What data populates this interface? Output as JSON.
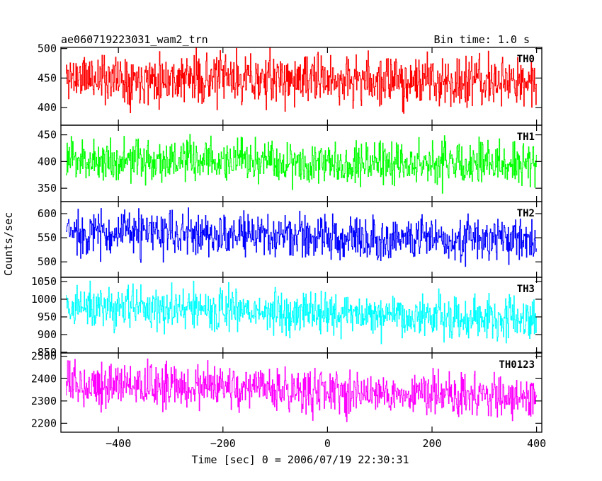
{
  "chart_data": {
    "type": "line",
    "title": "ae060719223031_wam2_trn",
    "bin_time": "Bin time: 1.0 s",
    "xlabel": "Time [sec] 0 = 2006/07/19 22:30:31",
    "ylabel": "Counts/sec",
    "xlim": [
      -510,
      410
    ],
    "x_ticks": [
      -400,
      -200,
      0,
      200,
      400
    ],
    "x_tick_labels": [
      "−400",
      "−200",
      "0",
      "200",
      "400"
    ],
    "x_range": [
      -500,
      400
    ],
    "panels": [
      {
        "label": "TH0",
        "color": "#ff0000",
        "ylim": [
          370,
          502
        ],
        "y_ticks": [
          400,
          450,
          500
        ],
        "y_tick_labels": [
          "400",
          "450",
          "500"
        ],
        "level_start": 452,
        "level_end": 442,
        "noise": 21,
        "seed": 11
      },
      {
        "label": "TH1",
        "color": "#00ff00",
        "ylim": [
          325,
          468
        ],
        "y_ticks": [
          350,
          400,
          450
        ],
        "y_tick_labels": [
          "350",
          "400",
          "450"
        ],
        "level_start": 403,
        "level_end": 396,
        "noise": 20,
        "seed": 23
      },
      {
        "label": "TH2",
        "color": "#0000ff",
        "ylim": [
          468,
          625
        ],
        "y_ticks": [
          500,
          550,
          600
        ],
        "y_tick_labels": [
          "500",
          "550",
          "600"
        ],
        "level_start": 562,
        "level_end": 545,
        "noise": 23,
        "seed": 37
      },
      {
        "label": "TH3",
        "color": "#00ffff",
        "ylim": [
          848,
          1062
        ],
        "y_ticks": [
          850,
          900,
          950,
          1000,
          1050
        ],
        "y_tick_labels": [
          "850",
          "900",
          "950",
          "1000",
          "1050"
        ],
        "level_start": 980,
        "level_end": 945,
        "noise": 31,
        "seed": 41
      },
      {
        "label": "TH0123",
        "color": "#ff00ff",
        "ylim": [
          2160,
          2515
        ],
        "y_ticks": [
          2200,
          2300,
          2400,
          2500
        ],
        "y_tick_labels": [
          "2200",
          "2300",
          "2400",
          "2500"
        ],
        "level_start": 2380,
        "level_end": 2315,
        "noise": 48,
        "seed": 53
      }
    ]
  }
}
